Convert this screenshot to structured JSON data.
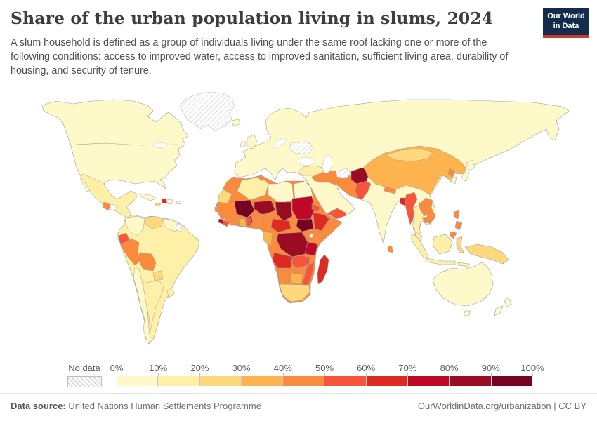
{
  "header": {
    "title": "Share of the urban population living in slums, 2024",
    "subtitle": "A slum household is defined as a group of individuals living under the same roof lacking one or more of the following conditions: access to improved water, access to improved sanitation, sufficient living area, durability of housing, and security of tenure.",
    "logo": {
      "line1": "Our World",
      "line2": "in Data",
      "bg": "#132c4e",
      "accent": "#cc3b30"
    }
  },
  "legend": {
    "no_data_label": "No data",
    "tick_labels": [
      "0%",
      "10%",
      "20%",
      "30%",
      "40%",
      "50%",
      "60%",
      "70%",
      "80%",
      "90%",
      "100%"
    ],
    "colors": [
      "#fef9c8",
      "#fef0a6",
      "#fdd87c",
      "#fdb44e",
      "#fb8b3c",
      "#f6553c",
      "#dd2a23",
      "#be0a26",
      "#9a0c23",
      "#760323"
    ]
  },
  "footer": {
    "source_label": "Data source:",
    "source_text": " United Nations Human Settlements Programme",
    "right_text": "OurWorldinData.org/urbanization | CC BY"
  },
  "chart_data": {
    "type": "choropleth-map",
    "title": "Share of the urban population living in slums, 2024",
    "unit": "% of urban population living in slums",
    "bin_ranges": [
      "0-10%",
      "10-20%",
      "20-30%",
      "30-40%",
      "40-50%",
      "50-60%",
      "60-70%",
      "70-80%",
      "80-90%",
      "90-100%"
    ],
    "no_data_key": "no-data",
    "regions": {
      "north-america": 1,
      "greenland": "no-data",
      "mexico": 2,
      "guatemala": 5,
      "honduras": "no-data",
      "cuba": 1,
      "haiti": 7,
      "dominican-republic": 1,
      "jamaica": 3,
      "puerto-rico": 1,
      "south-america": 2,
      "colombia": 1,
      "venezuela": 3,
      "guyanas": 1,
      "french-guiana": "no-data",
      "ecuador": 6,
      "peru": 5,
      "bolivia": 5,
      "paraguay": 3,
      "chile": 1,
      "argentina": 2,
      "uruguay": 2,
      "eurasia": 1,
      "iceland": 1,
      "united-kingdom": 1,
      "ireland": 1,
      "ukraine": "no-data",
      "turkey": 2,
      "levant-iran": 5,
      "yemen": 6,
      "afghanistan": 9,
      "pakistan": 6,
      "turkmenistan": "no-data",
      "china": 4,
      "mongolia": 3,
      "north-korea": 5,
      "south-korea": 1,
      "japan": 1,
      "nepal": 5,
      "bangladesh": 7,
      "myanmar": 6,
      "thailand": 2,
      "laos": 5,
      "cambodia": 5,
      "vietnam": 5,
      "malaysia": 2,
      "sri-lanka": 5,
      "philippines": 5,
      "indonesia": 2,
      "borneo": 2,
      "sulawesi": 3,
      "new-guinea": 3,
      "australia": 1,
      "tasmania": 1,
      "new-zealand": 1,
      "africa": 5,
      "morocco": 5,
      "tunisia": 5,
      "western-sahara": 3,
      "algeria": 2,
      "libya": 1,
      "egypt": 1,
      "mauritania": 5,
      "mali": 10,
      "burkina-faso": 8,
      "niger": 9,
      "chad": 9,
      "sudan": 8,
      "south-sudan": 10,
      "senegal": 5,
      "guinea": 5,
      "sierra-leone": 8,
      "liberia": 6,
      "ivory-coast": 5,
      "ghana": 4,
      "benin": 6,
      "nigeria": 5,
      "cameroon": 5,
      "gabon-congo": 4,
      "central-african-republic": 7,
      "eritrea": 6,
      "ethiopia": 7,
      "somalia": 5,
      "kenya": 5,
      "uganda": 5,
      "drc": 9,
      "tanzania": 8,
      "angola": 7,
      "zambia": 6,
      "mozambique": 6,
      "zimbabwe": 5,
      "malawi": 6,
      "namibia": 5,
      "botswana": 4,
      "south-africa": 3,
      "madagascar": 7
    }
  }
}
